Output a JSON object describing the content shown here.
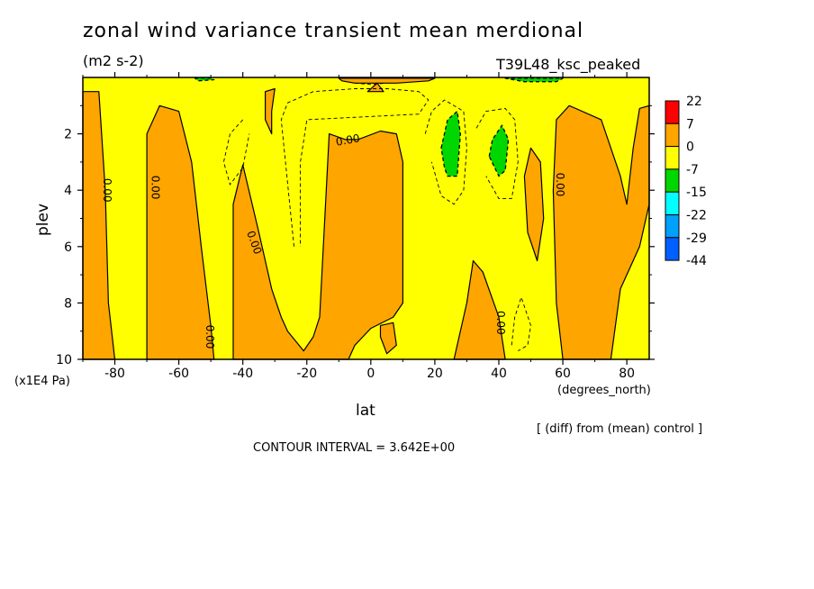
{
  "chart_data": {
    "type": "contour",
    "title": "zonal wind variance transient mean merdional",
    "units": "(m2 s-2)",
    "experiment": "T39L48_ksc_peaked",
    "xlabel": "lat",
    "x_units": "(degrees_north)",
    "ylabel": "plev",
    "y_units": "(x1E4 Pa)",
    "xlim": [
      -90,
      87
    ],
    "ylim": [
      10,
      0
    ],
    "x_ticks": [
      -80,
      -60,
      -40,
      -20,
      0,
      20,
      40,
      60,
      80
    ],
    "x_tick_labels": [
      "-80",
      "-60",
      "-40",
      "-20",
      "0",
      "20",
      "40",
      "60",
      "80"
    ],
    "y_ticks": [
      2,
      4,
      6,
      8,
      10
    ],
    "y_tick_labels": [
      "2",
      "4",
      "6",
      "8",
      "10"
    ],
    "contour_label": "0.00",
    "contour_interval_text": "CONTOUR INTERVAL = 3.642E+00",
    "diff_note": "[ (diff) from (mean) control ]",
    "colorbar": {
      "levels": [
        "22",
        "7",
        "0",
        "-7",
        "-15",
        "-22",
        "-29",
        "-44"
      ],
      "colors": [
        "#ff0000",
        "#ffa500",
        "#ffff00",
        "#00d700",
        "#00ffff",
        "#00a0ff",
        "#0060ff"
      ]
    },
    "regions": [
      {
        "sign": "positive",
        "color": "#ffa500",
        "points": [
          [
            -90,
            0.5
          ],
          [
            -85,
            0.5
          ],
          [
            -83,
            4
          ],
          [
            -82,
            8
          ],
          [
            -80,
            10
          ],
          [
            -90,
            10
          ]
        ]
      },
      {
        "sign": "positive",
        "color": "#ffa500",
        "points": [
          [
            -70,
            2
          ],
          [
            -66,
            1
          ],
          [
            -60,
            1.2
          ],
          [
            -56,
            3
          ],
          [
            -53,
            6
          ],
          [
            -50,
            8.8
          ],
          [
            -49,
            10
          ],
          [
            -70,
            10
          ]
        ]
      },
      {
        "sign": "positive",
        "color": "#ffa500",
        "points": [
          [
            -43,
            4.5
          ],
          [
            -40,
            3.1
          ],
          [
            -35,
            5.5
          ],
          [
            -31,
            7.5
          ],
          [
            -28,
            8.5
          ],
          [
            -26,
            9
          ],
          [
            -21,
            9.7
          ],
          [
            -18,
            9.2
          ],
          [
            -16,
            8.5
          ],
          [
            -13,
            2
          ],
          [
            -8,
            2.2
          ],
          [
            -4,
            2.2
          ],
          [
            3,
            1.9
          ],
          [
            8,
            2
          ],
          [
            10,
            3
          ],
          [
            10,
            8
          ],
          [
            7,
            8.5
          ],
          [
            0,
            8.9
          ],
          [
            -5,
            9.5
          ],
          [
            -7,
            10
          ],
          [
            -43,
            10
          ]
        ]
      },
      {
        "sign": "positive",
        "color": "#ffa500",
        "points": [
          [
            -33,
            0.5
          ],
          [
            -30,
            0.4
          ],
          [
            -31,
            1.2
          ],
          [
            -31,
            2
          ],
          [
            -33,
            1.5
          ]
        ]
      },
      {
        "sign": "positive",
        "color": "#ffa500",
        "points": [
          [
            3,
            8.8
          ],
          [
            7,
            8.7
          ],
          [
            8,
            9.5
          ],
          [
            5,
            9.8
          ],
          [
            3,
            9.2
          ]
        ]
      },
      {
        "sign": "positive",
        "color": "#ffa500",
        "points": [
          [
            26,
            10
          ],
          [
            30,
            8
          ],
          [
            32,
            6.5
          ],
          [
            35,
            6.9
          ],
          [
            40,
            8.5
          ],
          [
            42,
            10
          ]
        ]
      },
      {
        "sign": "positive",
        "color": "#ffa500",
        "points": [
          [
            48,
            3.5
          ],
          [
            50,
            2.5
          ],
          [
            53,
            3
          ],
          [
            54,
            5
          ],
          [
            52,
            6.5
          ],
          [
            49,
            5.5
          ]
        ]
      },
      {
        "sign": "positive",
        "color": "#ffa500",
        "points": [
          [
            58,
            1.5
          ],
          [
            62,
            1
          ],
          [
            72,
            1.5
          ],
          [
            78,
            3.5
          ],
          [
            80,
            4.5
          ],
          [
            82,
            2.5
          ],
          [
            84,
            1.1
          ],
          [
            87,
            1
          ],
          [
            87,
            4.5
          ],
          [
            84,
            6
          ],
          [
            80,
            7
          ],
          [
            78,
            7.5
          ],
          [
            75,
            10
          ],
          [
            60,
            10
          ],
          [
            58,
            8
          ],
          [
            57,
            4
          ]
        ]
      },
      {
        "sign": "negative",
        "color": "#00d700",
        "points": [
          [
            22,
            2.5
          ],
          [
            24,
            1.5
          ],
          [
            27,
            1.2
          ],
          [
            28,
            2
          ],
          [
            27,
            3.5
          ],
          [
            24,
            3.5
          ],
          [
            23,
            3.2
          ]
        ]
      },
      {
        "sign": "negative",
        "color": "#00d700",
        "points": [
          [
            37,
            2.8
          ],
          [
            38,
            2.2
          ],
          [
            41,
            1.7
          ],
          [
            43,
            2.2
          ],
          [
            42,
            3.3
          ],
          [
            40,
            3.5
          ]
        ]
      },
      {
        "sign": "negative",
        "color": "#00d700",
        "points": [
          [
            -55,
            0.02
          ],
          [
            -50,
            0.02
          ],
          [
            -49,
            0.08
          ],
          [
            -54,
            0.12
          ]
        ]
      },
      {
        "sign": "negative",
        "color": "#00d700",
        "points": [
          [
            42,
            0.03
          ],
          [
            60,
            0.03
          ],
          [
            58,
            0.15
          ],
          [
            48,
            0.15
          ]
        ]
      },
      {
        "sign": "positive",
        "color": "#ffa500",
        "points": [
          [
            -10,
            0.03
          ],
          [
            20,
            0.03
          ],
          [
            18,
            0.12
          ],
          [
            8,
            0.2
          ],
          [
            -5,
            0.2
          ],
          [
            -9,
            0.12
          ]
        ]
      },
      {
        "sign": "positive",
        "color": "#ffa500",
        "points": [
          [
            -1,
            0.5
          ],
          [
            2,
            0.2
          ],
          [
            4,
            0.5
          ]
        ]
      }
    ]
  }
}
